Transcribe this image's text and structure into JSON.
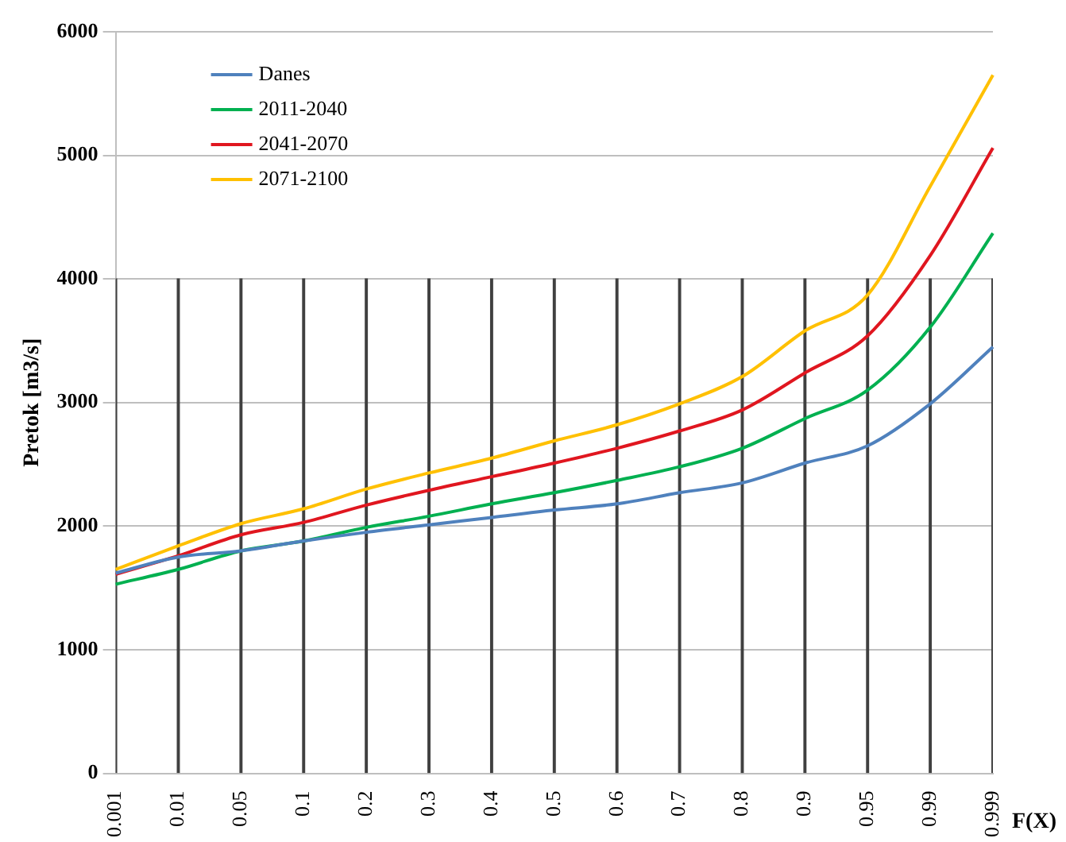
{
  "chart_data": {
    "type": "line",
    "xlabel": "F(X)",
    "ylabel": "Pretok [m3/s]",
    "categories": [
      "0.001",
      "0.01",
      "0.05",
      "0.1",
      "0.2",
      "0.3",
      "0.4",
      "0.5",
      "0.6",
      "0.7",
      "0.8",
      "0.9",
      "0.95",
      "0.99",
      "0.999"
    ],
    "ylim": [
      0,
      6000
    ],
    "yticks": [
      0,
      1000,
      2000,
      3000,
      4000,
      5000,
      6000
    ],
    "grid": "y",
    "legend": "top left",
    "marker": "none",
    "line_style": "solid",
    "series": [
      {
        "type": "bar",
        "color": "#404040",
        "values": [
          4000,
          4000,
          4000,
          4000,
          4000,
          4000,
          4000,
          4000,
          4000,
          4000,
          4000,
          4000,
          4000,
          4000,
          4000
        ]
      },
      {
        "name": "Danes",
        "color": "#4f81bd",
        "values": [
          1620,
          1750,
          1800,
          1880,
          1950,
          2010,
          2070,
          2130,
          2180,
          2270,
          2350,
          2510,
          2650,
          2990,
          3450
        ]
      },
      {
        "name": "2011-2040",
        "color": "#00b050",
        "values": [
          1530,
          1650,
          1800,
          1880,
          1990,
          2080,
          2180,
          2270,
          2370,
          2480,
          2630,
          2870,
          3100,
          3610,
          4370
        ]
      },
      {
        "name": "2041-2070",
        "color": "#e0161f",
        "values": [
          1610,
          1760,
          1930,
          2030,
          2170,
          2290,
          2400,
          2510,
          2630,
          2770,
          2940,
          3240,
          3540,
          4190,
          5060
        ]
      },
      {
        "name": "2071-2100",
        "color": "#ffc000",
        "values": [
          1650,
          1840,
          2020,
          2140,
          2300,
          2430,
          2550,
          2690,
          2820,
          2990,
          3210,
          3580,
          3870,
          4750,
          5650
        ]
      }
    ]
  }
}
